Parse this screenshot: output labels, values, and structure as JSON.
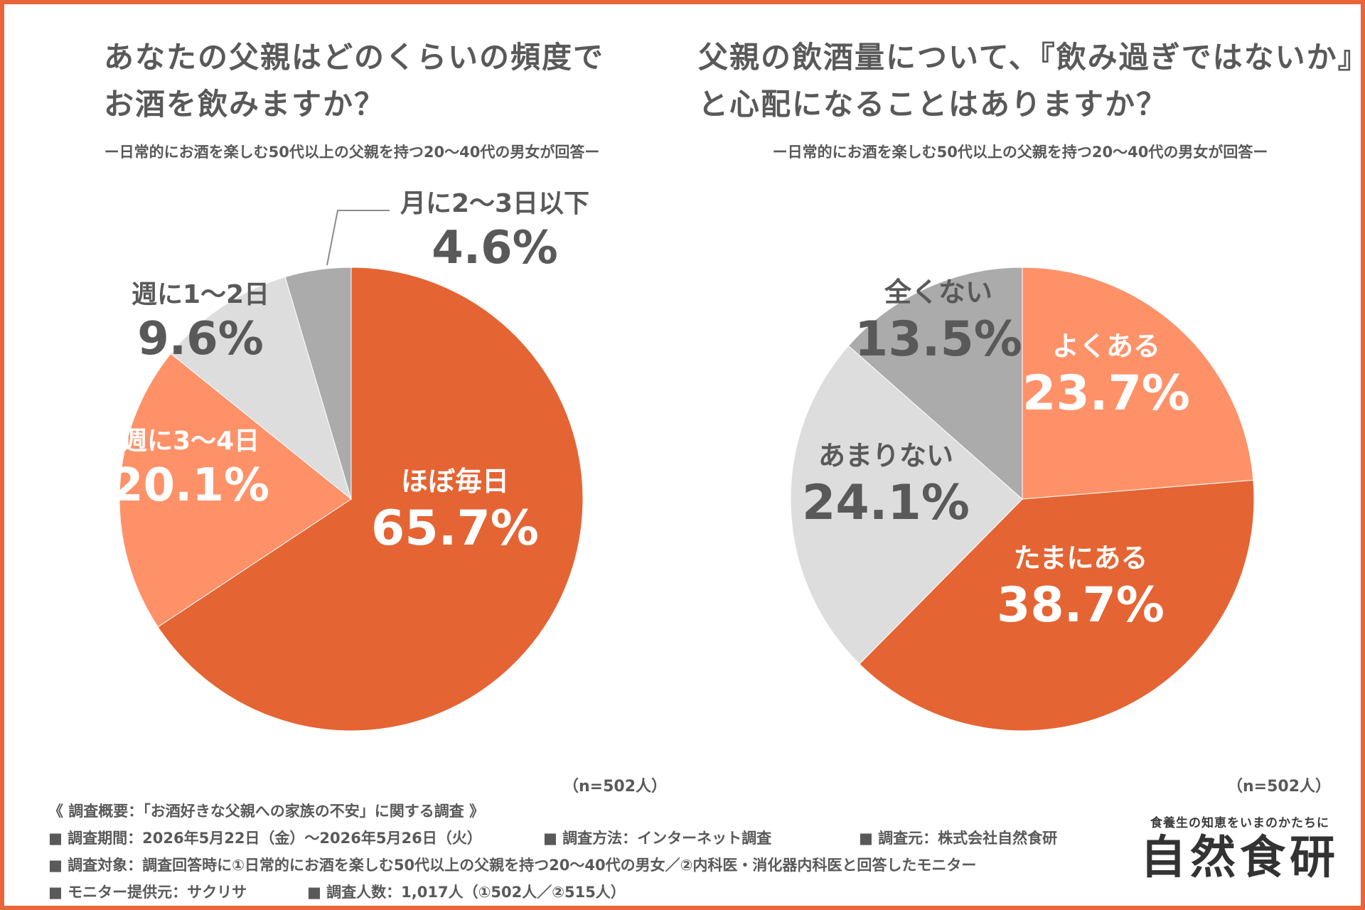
{
  "colors": {
    "frame": "#E8663A",
    "text": "#595959",
    "orange_dark": "#E56433",
    "orange_light": "#FF9169",
    "gray_light": "#DDDDDD",
    "gray_mid": "#ABABAB",
    "white": "#FFFFFF"
  },
  "left": {
    "title_line1": "あなたの父親はどのくらいの頻度で",
    "title_line2": "お酒を飲みますか？",
    "subtitle": "ー日常的にお酒を楽しむ50代以上の父親を持つ20〜40代の男女が回答ー",
    "n_note": "（n=502人）"
  },
  "right": {
    "title_line1": "父親の飲酒量について、『飲み過ぎではないか』",
    "title_line2": "と心配になることはありますか？",
    "subtitle": "ー日常的にお酒を楽しむ50代以上の父親を持つ20〜40代の男女が回答ー",
    "n_note": "（n=502人）"
  },
  "chart_data": [
    {
      "type": "pie",
      "title": "あなたの父親はどのくらいの頻度でお酒を飲みますか？",
      "categories": [
        "ほぼ毎日",
        "週に3〜4日",
        "週に1〜2日",
        "月に2〜3日以下"
      ],
      "values": [
        65.7,
        20.1,
        9.6,
        4.6
      ],
      "labels": [
        "65.7%",
        "20.1%",
        "9.6%",
        "4.6%"
      ],
      "colors": [
        "#E56433",
        "#FF9169",
        "#DDDDDD",
        "#ABABAB"
      ],
      "label_colors": [
        "#FFFFFF",
        "#FFFFFF",
        "#595959",
        "#595959"
      ],
      "start": "12 o'clock, clockwise"
    },
    {
      "type": "pie",
      "title": "父親の飲酒量について、『飲み過ぎではないか』と心配になることはありますか？",
      "categories": [
        "よくある",
        "たまにある",
        "あまりない",
        "全くない"
      ],
      "values": [
        23.7,
        38.7,
        24.1,
        13.5
      ],
      "labels": [
        "23.7%",
        "38.7%",
        "24.1%",
        "13.5%"
      ],
      "colors": [
        "#FF9169",
        "#E56433",
        "#DDDDDD",
        "#ABABAB"
      ],
      "label_colors": [
        "#FFFFFF",
        "#FFFFFF",
        "#595959",
        "#595959"
      ],
      "start": "12 o'clock, clockwise"
    }
  ],
  "survey": {
    "heading": "《 調査概要：「お酒好きな父親への家族の不安」に関する調査 》",
    "period": "■ 調査期間：2026年5月22日（金）〜2026年5月26日（火）",
    "method": "■ 調査方法：インターネット調査",
    "source": "■ 調査元：株式会社自然食研",
    "target": "■ 調査対象：調査回答時に①日常的にお酒を楽しむ50代以上の父親を持つ20〜40代の男女／②内科医・消化器内科医と回答したモニター",
    "provider": "■ モニター提供元：サクリサ",
    "count": "■ 調査人数：1,017人（①502人／②515人）"
  },
  "brand": {
    "tagline": "食養生の知恵をいまのかたちに",
    "logo": "自然食研"
  }
}
